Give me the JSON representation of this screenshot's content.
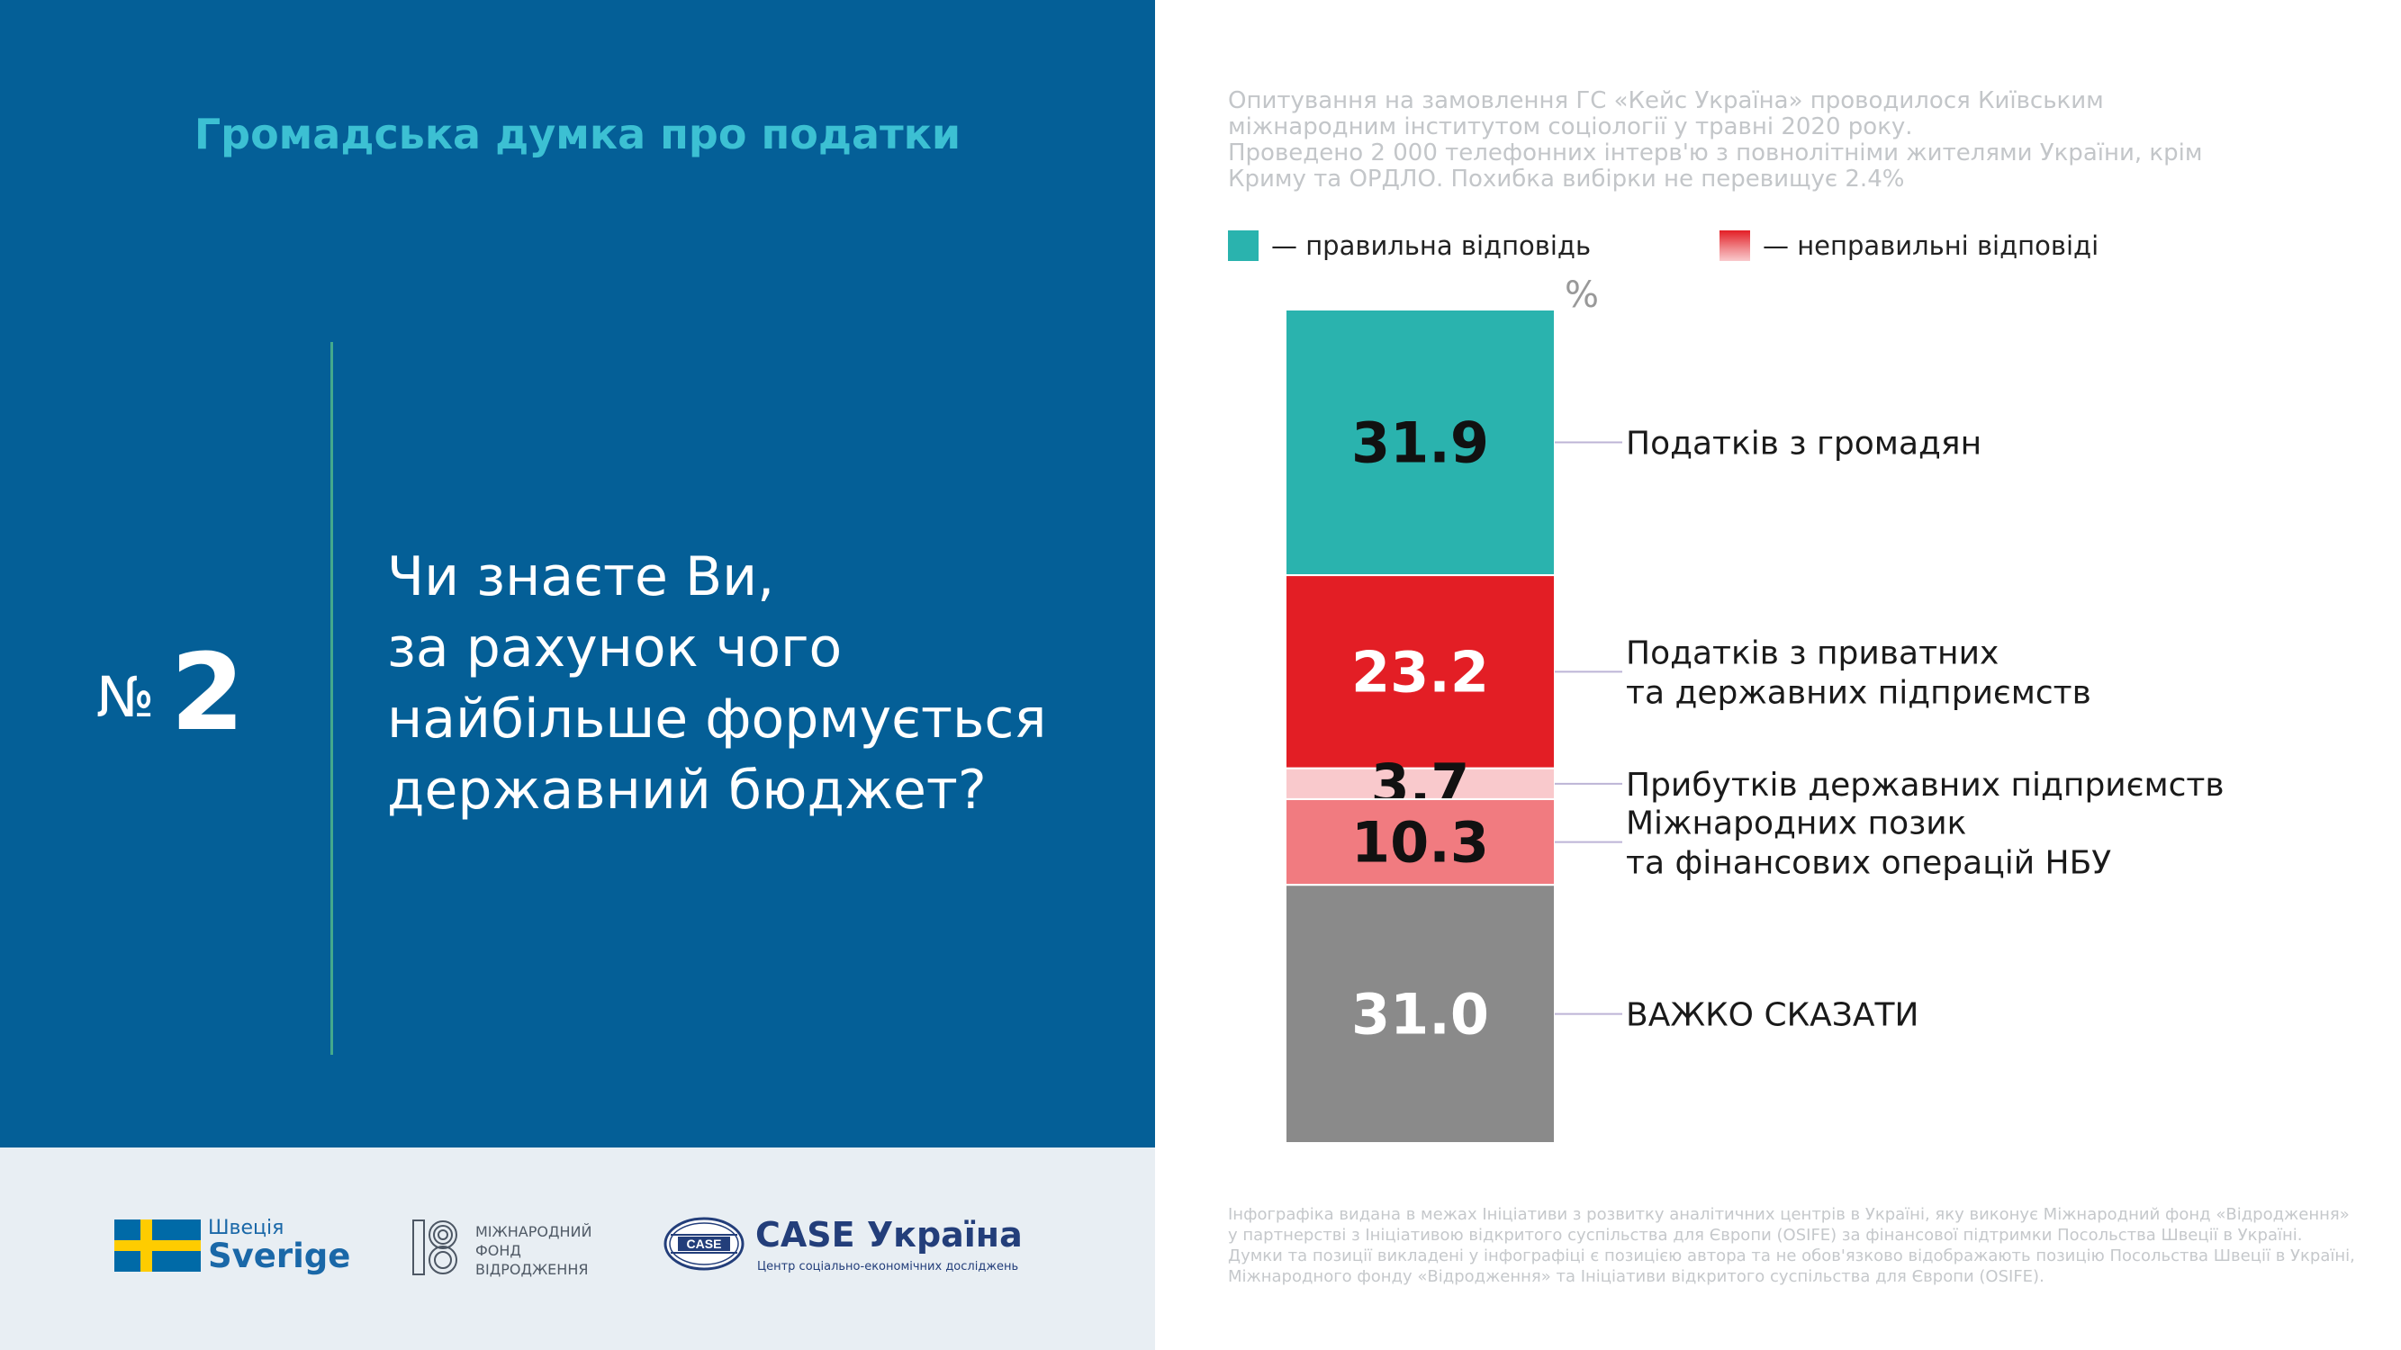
{
  "header": {
    "topic": "Громадська думка про податки",
    "question_sign": "№",
    "question_number": "2",
    "question_lines": [
      "Чи знаєте Ви,",
      "за рахунок чого",
      "найбільше формується",
      "державний бюджет?"
    ]
  },
  "survey_note_lines": [
    "Опитування на замовлення ГС «Кейс Україна» проводилося Київським",
    "міжнародним інститутом соціології у травні 2020 року.",
    "Проведено 2 000 телефонних інтерв'ю з повнолітніми жителями України, крім",
    "Криму та ОРДЛО. Похибка вибірки не перевищує 2.4%"
  ],
  "legend": {
    "correct": "— правильна відповідь",
    "incorrect": "— неправильні відповіді"
  },
  "colors": {
    "panel": "#045f97",
    "correct": "#2ab3ae",
    "incorrect_main": "#e31e25",
    "incorrect_light": "#f9c9cc",
    "incorrect_mid": "#f17b80",
    "hard_to_say": "#8a8a8a"
  },
  "chart_data": {
    "type": "bar",
    "orientation": "stacked-vertical",
    "unit": "%",
    "categories": [
      "Податків з громадян",
      "Податків з приватних та державних підприємств",
      "Прибутків державних підприємств",
      "Міжнародних позик та фінансових операцій НБУ",
      "ВАЖКО СКАЗАТИ"
    ],
    "values": [
      31.9,
      23.2,
      3.7,
      10.3,
      31.0
    ],
    "value_labels": [
      "31.9",
      "23.2",
      "3.7",
      "10.3",
      "31.0"
    ],
    "category_lines": [
      [
        "Податків з громадян"
      ],
      [
        "Податків з приватних",
        "та державних підприємств"
      ],
      [
        "Прибутків державних підприємств"
      ],
      [
        "Міжнародних позик",
        "та фінансових операцій НБУ"
      ],
      [
        "ВАЖКО СКАЗАТИ"
      ]
    ],
    "segment_colors": [
      "#2ab3ae",
      "#e31e25",
      "#f9c9cc",
      "#f17b80",
      "#8a8a8a"
    ],
    "label_colors": [
      "#111111",
      "#ffffff",
      "#111111",
      "#111111",
      "#ffffff"
    ],
    "legend_entries": [
      "правильна відповідь",
      "неправильні відповіді"
    ]
  },
  "footer": {
    "sweden_small": "Швеція",
    "sweden_big": "Sverige",
    "irf_lines": [
      "МІЖНАРОДНИЙ",
      "ФОНД",
      "ВІДРОДЖЕННЯ"
    ],
    "case_oval": "CASE",
    "case_title": "CASE Україна",
    "case_subtitle": "Центр соціально-економічних досліджень"
  },
  "footnote_lines": [
    "Інфографіка видана в межах Ініціативи з розвитку аналітичних центрів в Україні, яку виконує Міжнародний фонд «Відродження»",
    "у партнерстві з Ініціативою відкритого суспільства для Європи (OSIFE) за фінансової підтримки Посольства Швеції в Україні.",
    "Думки та позиції викладені у інфографіці є позицією автора та не обов'язково відображають позицію Посольства Швеції в Україні,",
    "Міжнародного фонду «Відродження» та Ініціативи відкритого суспільства для Європи (OSIFE)."
  ]
}
